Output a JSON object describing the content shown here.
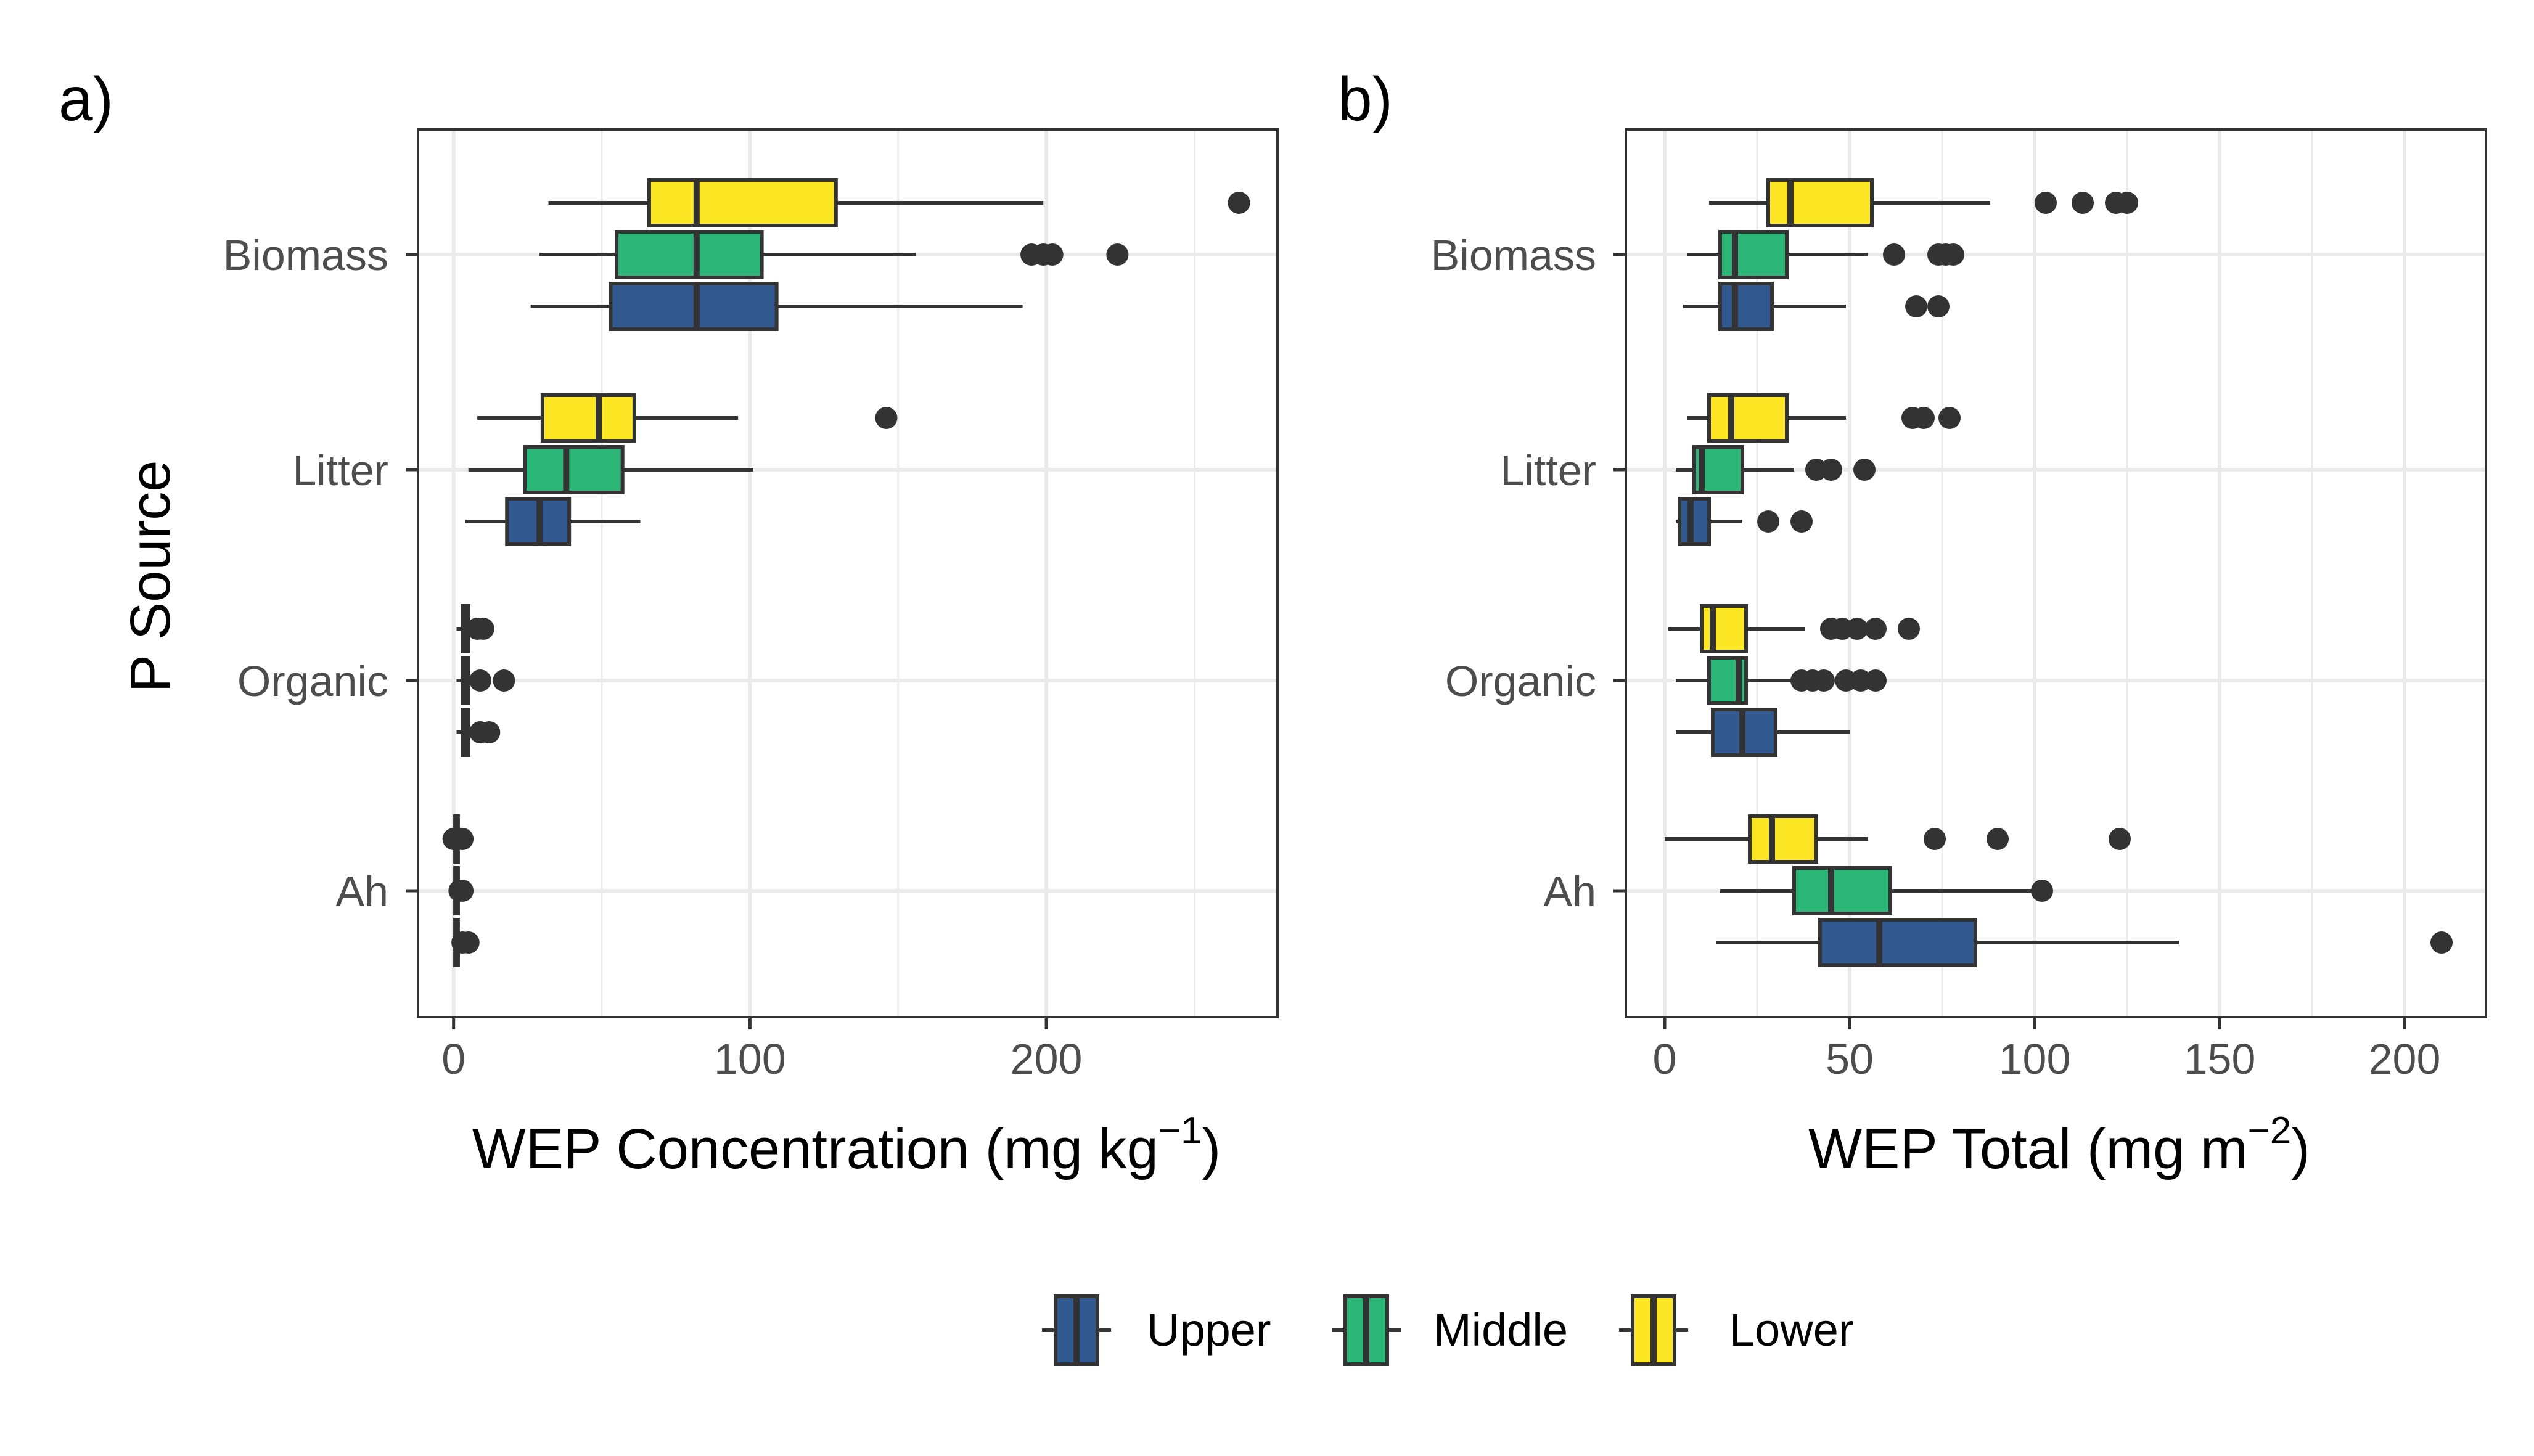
{
  "legend": {
    "entries": [
      {
        "label": "Upper",
        "color": "#31588f"
      },
      {
        "label": "Middle",
        "color": "#2bb577"
      },
      {
        "label": "Lower",
        "color": "#fde725"
      }
    ]
  },
  "chart_data": [
    {
      "type": "box",
      "panel_label": "a)",
      "xlabel": "WEP Concentration (mg kg",
      "xlabel_sup": "−1",
      "xlabel_close": ")",
      "ylabel": "P Source",
      "xlim": [
        -12,
        278
      ],
      "xticks": [
        0,
        100,
        200
      ],
      "xtick_labels": [
        "0",
        "100",
        "200"
      ],
      "x_minor": [
        50,
        150,
        250
      ],
      "categories": [
        "Biomass",
        "Litter",
        "Organic",
        "Ah"
      ],
      "series_order": [
        "Upper",
        "Middle",
        "Lower"
      ],
      "boxes": [
        {
          "category": "Biomass",
          "group": "Lower",
          "whislo": 32,
          "q1": 66,
          "med": 82,
          "q3": 129,
          "whishi": 199,
          "fliers": [
            265
          ]
        },
        {
          "category": "Biomass",
          "group": "Middle",
          "whislo": 29,
          "q1": 55,
          "med": 82,
          "q3": 104,
          "whishi": 156,
          "fliers": [
            195,
            199,
            202,
            224
          ]
        },
        {
          "category": "Biomass",
          "group": "Upper",
          "whislo": 26,
          "q1": 53,
          "med": 82,
          "q3": 109,
          "whishi": 192,
          "fliers": []
        },
        {
          "category": "Litter",
          "group": "Lower",
          "whislo": 8,
          "q1": 30,
          "med": 49,
          "q3": 61,
          "whishi": 96,
          "fliers": [
            146
          ]
        },
        {
          "category": "Litter",
          "group": "Middle",
          "whislo": 5,
          "q1": 24,
          "med": 38,
          "q3": 57,
          "whishi": 101,
          "fliers": []
        },
        {
          "category": "Litter",
          "group": "Upper",
          "whislo": 4,
          "q1": 18,
          "med": 29,
          "q3": 39,
          "whishi": 63,
          "fliers": []
        },
        {
          "category": "Organic",
          "group": "Lower",
          "whislo": 1,
          "q1": 3,
          "med": 4,
          "q3": 5,
          "whishi": 6,
          "fliers": [
            8,
            10
          ]
        },
        {
          "category": "Organic",
          "group": "Middle",
          "whislo": 1,
          "q1": 3,
          "med": 4,
          "q3": 5,
          "whishi": 6,
          "fliers": [
            9,
            17
          ]
        },
        {
          "category": "Organic",
          "group": "Upper",
          "whislo": 1,
          "q1": 3,
          "med": 4,
          "q3": 5,
          "whishi": 6,
          "fliers": [
            9,
            12
          ]
        },
        {
          "category": "Ah",
          "group": "Lower",
          "whislo": 0,
          "q1": 0.5,
          "med": 1,
          "q3": 1.5,
          "whishi": 2,
          "fliers": [
            0,
            3
          ]
        },
        {
          "category": "Ah",
          "group": "Middle",
          "whislo": 0,
          "q1": 0.5,
          "med": 1,
          "q3": 1.5,
          "whishi": 2,
          "fliers": [
            2,
            3
          ]
        },
        {
          "category": "Ah",
          "group": "Upper",
          "whislo": 0,
          "q1": 0.5,
          "med": 1,
          "q3": 1.5,
          "whishi": 2,
          "fliers": [
            3,
            5
          ]
        }
      ]
    },
    {
      "type": "box",
      "panel_label": "b)",
      "xlabel": "WEP Total (mg m",
      "xlabel_sup": "−2",
      "xlabel_close": ")",
      "ylabel": "",
      "xlim": [
        -10.5,
        222
      ],
      "xticks": [
        0,
        50,
        100,
        150,
        200
      ],
      "xtick_labels": [
        "0",
        "50",
        "100",
        "150",
        "200"
      ],
      "x_minor": [
        25,
        75,
        125,
        175
      ],
      "categories": [
        "Biomass",
        "Litter",
        "Organic",
        "Ah"
      ],
      "series_order": [
        "Upper",
        "Middle",
        "Lower"
      ],
      "boxes": [
        {
          "category": "Biomass",
          "group": "Lower",
          "whislo": 12,
          "q1": 28,
          "med": 34,
          "q3": 56,
          "whishi": 88,
          "fliers": [
            103,
            113,
            122,
            125
          ]
        },
        {
          "category": "Biomass",
          "group": "Middle",
          "whislo": 6,
          "q1": 15,
          "med": 19,
          "q3": 33,
          "whishi": 55,
          "fliers": [
            62,
            74,
            76,
            78
          ]
        },
        {
          "category": "Biomass",
          "group": "Upper",
          "whislo": 5,
          "q1": 15,
          "med": 19,
          "q3": 29,
          "whishi": 49,
          "fliers": [
            68,
            74
          ]
        },
        {
          "category": "Litter",
          "group": "Lower",
          "whislo": 6,
          "q1": 12,
          "med": 18,
          "q3": 33,
          "whishi": 49,
          "fliers": [
            67,
            70,
            77
          ]
        },
        {
          "category": "Litter",
          "group": "Middle",
          "whislo": 3,
          "q1": 8,
          "med": 10,
          "q3": 21,
          "whishi": 35,
          "fliers": [
            41,
            45,
            54
          ]
        },
        {
          "category": "Litter",
          "group": "Upper",
          "whislo": 3,
          "q1": 4,
          "med": 7,
          "q3": 12,
          "whishi": 21,
          "fliers": [
            28,
            37
          ]
        },
        {
          "category": "Organic",
          "group": "Lower",
          "whislo": 1,
          "q1": 10,
          "med": 13,
          "q3": 22,
          "whishi": 38,
          "fliers": [
            45,
            48,
            52,
            57,
            66
          ]
        },
        {
          "category": "Organic",
          "group": "Middle",
          "whislo": 3,
          "q1": 12,
          "med": 20,
          "q3": 22,
          "whishi": 35,
          "fliers": [
            37,
            40,
            43,
            49,
            53,
            57
          ]
        },
        {
          "category": "Organic",
          "group": "Upper",
          "whislo": 3,
          "q1": 13,
          "med": 21,
          "q3": 30,
          "whishi": 50,
          "fliers": []
        },
        {
          "category": "Ah",
          "group": "Lower",
          "whislo": 0,
          "q1": 23,
          "med": 29,
          "q3": 41,
          "whishi": 55,
          "fliers": [
            73,
            90,
            123
          ]
        },
        {
          "category": "Ah",
          "group": "Middle",
          "whislo": 15,
          "q1": 35,
          "med": 45,
          "q3": 61,
          "whishi": 101,
          "fliers": [
            102
          ]
        },
        {
          "category": "Ah",
          "group": "Upper",
          "whislo": 14,
          "q1": 42,
          "med": 58,
          "q3": 84,
          "whishi": 139,
          "fliers": [
            210
          ]
        }
      ]
    }
  ]
}
